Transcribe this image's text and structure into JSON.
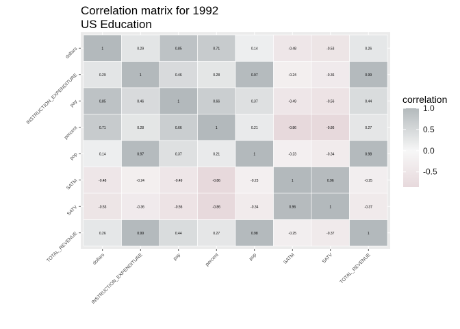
{
  "chart_data": {
    "type": "heatmap",
    "title": "Correlation matrix for 1992\nUS Education",
    "variables": [
      "dollars",
      "INSTRUCTION_EXPENDITURE",
      "pay",
      "percent",
      "pop",
      "SATM",
      "SATV",
      "TOTAL_REVENUE"
    ],
    "matrix": [
      [
        1,
        0.29,
        0.85,
        0.71,
        0.14,
        -0.48,
        -0.53,
        0.26
      ],
      [
        0.29,
        1,
        0.46,
        0.28,
        0.97,
        -0.24,
        -0.36,
        0.99
      ],
      [
        0.85,
        0.46,
        1,
        0.66,
        0.37,
        -0.49,
        -0.56,
        0.44
      ],
      [
        0.71,
        0.28,
        0.66,
        1,
        0.21,
        -0.86,
        -0.86,
        0.27
      ],
      [
        0.14,
        0.97,
        0.37,
        0.21,
        1,
        -0.23,
        -0.34,
        0.98
      ],
      [
        -0.48,
        -0.24,
        -0.49,
        -0.86,
        -0.23,
        1,
        0.96,
        -0.25
      ],
      [
        -0.53,
        -0.36,
        -0.56,
        -0.86,
        -0.34,
        0.96,
        1,
        -0.37
      ],
      [
        0.26,
        0.99,
        0.44,
        0.27,
        0.98,
        -0.25,
        -0.37,
        1
      ]
    ],
    "cell_labels": [
      [
        "1",
        "0.29",
        "0.85",
        "0.71",
        "0.14",
        "-0.48",
        "-0.53",
        "0.26"
      ],
      [
        "0.29",
        "1",
        "0.46",
        "0.28",
        "0.97",
        "-0.24",
        "-0.36",
        "0.99"
      ],
      [
        "0.85",
        "0.46",
        "1",
        "0.66",
        "0.37",
        "-0.49",
        "-0.56",
        "0.44"
      ],
      [
        "0.71",
        "0.28",
        "0.66",
        "1",
        "0.21",
        "-0.86",
        "-0.86",
        "0.27"
      ],
      [
        "0.14",
        "0.97",
        "0.37",
        "0.21",
        "1",
        "-0.23",
        "-0.34",
        "0.98"
      ],
      [
        "-0.48",
        "-0.24",
        "-0.49",
        "-0.86",
        "-0.23",
        "1",
        "0.96",
        "-0.25"
      ],
      [
        "-0.53",
        "-0.36",
        "-0.56",
        "-0.86",
        "-0.34",
        "0.96",
        "1",
        "-0.37"
      ],
      [
        "0.26",
        "0.99",
        "0.44",
        "0.27",
        "0.98",
        "-0.25",
        "-0.37",
        "1"
      ]
    ],
    "legend": {
      "title": "correlation",
      "ticks": [
        1.0,
        0.5,
        0.0,
        -0.5
      ],
      "tick_labels": [
        "1.0",
        "0.5",
        "0.0",
        "-0.5"
      ],
      "range": [
        -0.86,
        1
      ],
      "placement": "right"
    },
    "colors": {
      "low": "#e7d9dc",
      "mid": "#f7f7f7",
      "high": "#b3b9bc",
      "panel_background": "#ebebeb"
    },
    "grid": true
  }
}
